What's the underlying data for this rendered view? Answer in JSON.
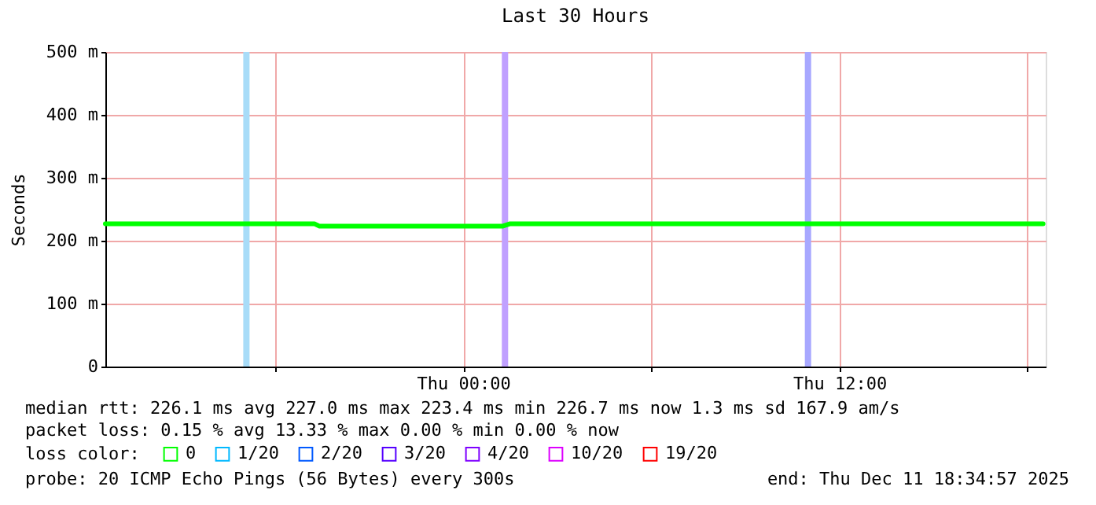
{
  "chart_data": {
    "type": "line",
    "title": "Last 30 Hours",
    "ylabel": "Seconds",
    "legend_title": "loss color:",
    "x": [
      "2025-12-10T12:35",
      "2025-12-10T19:15",
      "2025-12-10T19:25",
      "2025-12-11T01:15",
      "2025-12-11T01:30",
      "2025-12-11T18:30"
    ],
    "series": [
      {
        "name": "0",
        "color": "#00ff00",
        "values": [
          227,
          227,
          223,
          223,
          227,
          227
        ]
      },
      {
        "name": "1/20",
        "color": "#00b8ff",
        "values": [
          null,
          null,
          null,
          null,
          null,
          null
        ]
      },
      {
        "name": "2/20",
        "color": "#0059ff",
        "values": [
          null,
          null,
          null,
          null,
          null,
          null
        ]
      },
      {
        "name": "3/20",
        "color": "#5500ff",
        "values": [
          null,
          null,
          null,
          null,
          null,
          null
        ]
      },
      {
        "name": "4/20",
        "color": "#7e00ff",
        "values": [
          null,
          null,
          null,
          null,
          null,
          null
        ]
      },
      {
        "name": "10/20",
        "color": "#dd00ff",
        "values": [
          null,
          null,
          null,
          null,
          null,
          null
        ]
      },
      {
        "name": "19/20",
        "color": "#ff0000",
        "values": [
          null,
          null,
          null,
          null,
          null,
          null
        ]
      }
    ],
    "xlim": [
      "2025-12-10T12:35",
      "2025-12-11T18:35"
    ],
    "xticks": [
      {
        "value": "2025-12-10T18:00",
        "label": null
      },
      {
        "value": "2025-12-11T00:00",
        "label": "Thu 00:00"
      },
      {
        "value": "2025-12-11T06:00",
        "label": null
      },
      {
        "value": "2025-12-11T12:00",
        "label": "Thu 12:00"
      },
      {
        "value": "2025-12-11T18:00",
        "label": null
      }
    ],
    "ylim": [
      0,
      500
    ],
    "yticks": [
      0,
      {
        "value": 100,
        "label": "100 m"
      },
      {
        "value": 200,
        "label": "200 m"
      },
      {
        "value": 300,
        "label": "300 m"
      },
      {
        "value": 400,
        "label": "400 m"
      },
      {
        "value": 500,
        "label": "500 m"
      }
    ],
    "ref_lines": [
      {
        "axis": "x",
        "value": "2025-12-10T17:05",
        "color": "#a8dcf8"
      },
      {
        "axis": "x",
        "value": "2025-12-11T01:20",
        "color": "#c0a0ff"
      },
      {
        "axis": "x",
        "value": "2025-12-11T11:00",
        "color": "#a8a8ff"
      }
    ],
    "annotations": [
      "median rtt:  226.1 ms avg  227.0 ms max  223.4 ms min  226.7 ms now  1.3 ms sd  167.9   am/s",
      "packet loss: 0.15 % avg  13.33 % max  0.00 % min  0.00 % now",
      "probe:       20 ICMP Echo Pings (56 Bytes) every 300s",
      "end: Thu Dec 11 18:34:57 2025"
    ],
    "grid": true,
    "legend": "bottom"
  }
}
